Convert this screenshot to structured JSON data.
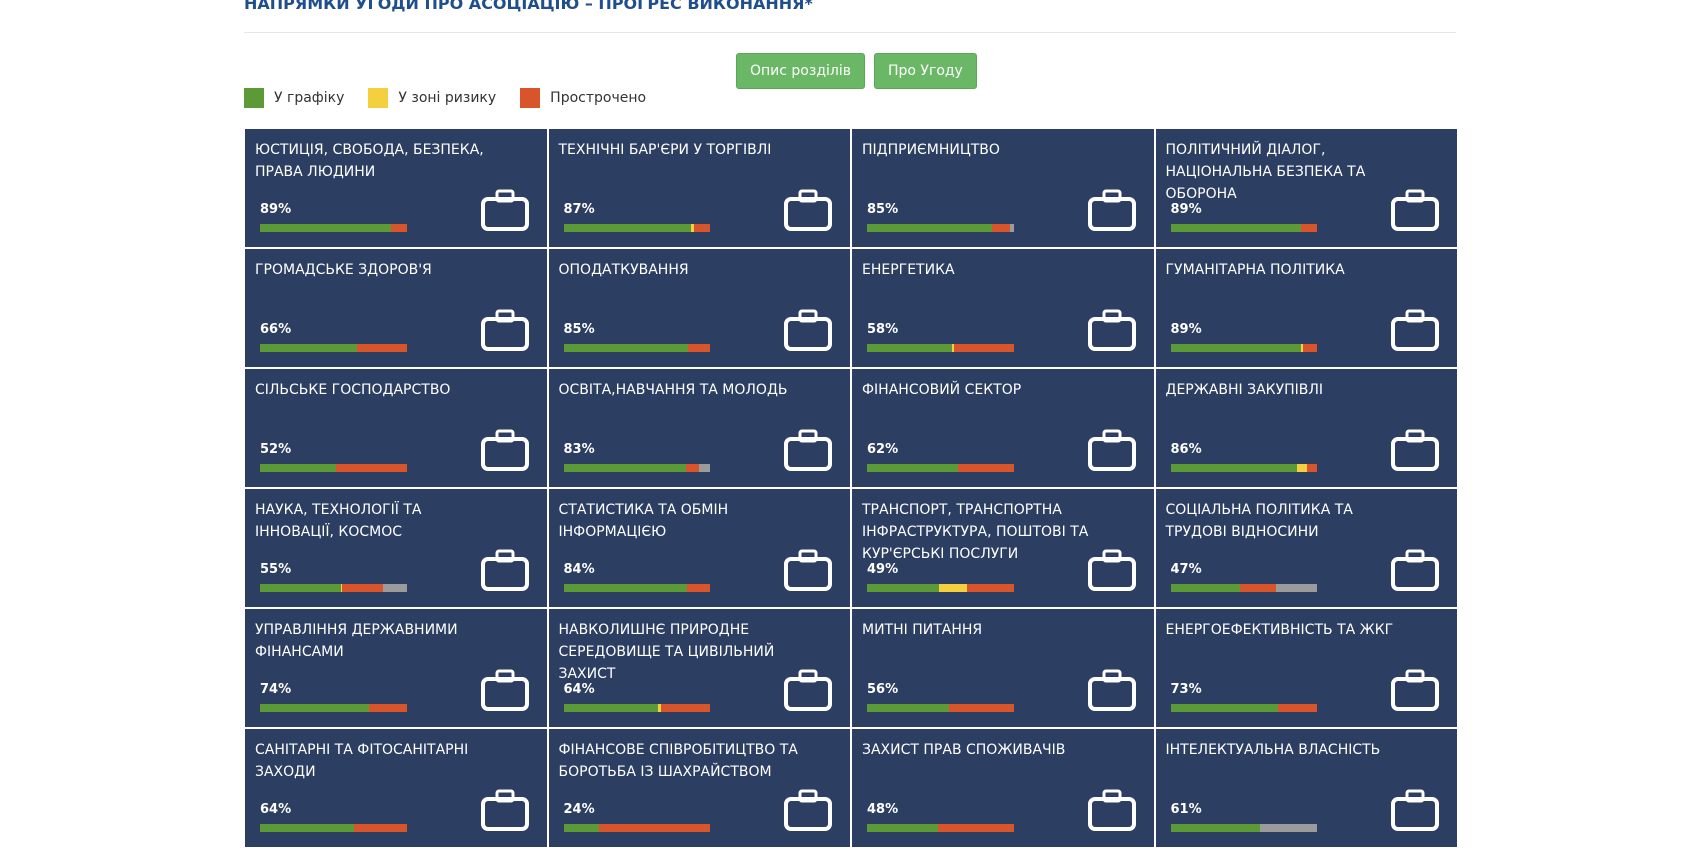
{
  "header": {
    "title": "НАПРЯМКИ УГОДИ ПРО АСОЦІАЦІЮ – ПРОГРЕС ВИКОНАННЯ*"
  },
  "buttons": [
    "Опис розділів",
    "Про Угоду"
  ],
  "legend": [
    {
      "label": "У графіку",
      "color": "#5b9a37"
    },
    {
      "label": "У зоні ризику",
      "color": "#f4d03f"
    },
    {
      "label": "Прострочено",
      "color": "#d8552b"
    }
  ],
  "other_color": "#9b9b9b",
  "tiles": [
    {
      "title": "ЮСТИЦІЯ, СВОБОДА, БЕЗПЕКА, ПРАВА ЛЮДИНИ",
      "label": "89%",
      "segments": [
        89,
        0,
        11,
        0
      ]
    },
    {
      "title": "ТЕХНІЧНІ БАР'ЄРИ У ТОРГІВЛІ",
      "label": "87%",
      "segments": [
        87,
        2,
        11,
        0
      ]
    },
    {
      "title": "ПІДПРИЄМНИЦТВО",
      "label": "85%",
      "segments": [
        85,
        0,
        12,
        3
      ]
    },
    {
      "title": "ПОЛІТИЧНИЙ ДІАЛОГ, НАЦІОНАЛЬНА БЕЗПЕКА ТА ОБОРОНА",
      "label": "89%",
      "segments": [
        89,
        0,
        11,
        0
      ]
    },
    {
      "title": "ГРОМАДСЬКЕ ЗДОРОВ'Я",
      "label": "66%",
      "segments": [
        66,
        0,
        34,
        0
      ]
    },
    {
      "title": "ОПОДАТКУВАННЯ",
      "label": "85%",
      "segments": [
        85,
        0,
        15,
        0
      ]
    },
    {
      "title": "ЕНЕРГЕТИКА",
      "label": "58%",
      "segments": [
        58,
        1,
        41,
        0
      ]
    },
    {
      "title": "ГУМАНІТАРНА ПОЛІТИКА",
      "label": "89%",
      "segments": [
        89,
        1,
        10,
        0
      ]
    },
    {
      "title": "СІЛЬСЬКЕ ГОСПОДАРСТВО",
      "label": "52%",
      "segments": [
        52,
        0,
        48,
        0
      ]
    },
    {
      "title": "ОСВІТА,НАВЧАННЯ ТА МОЛОДЬ",
      "label": "83%",
      "segments": [
        83,
        0,
        9,
        8
      ]
    },
    {
      "title": "ФІНАНСОВИЙ СЕКТОР",
      "label": "62%",
      "segments": [
        62,
        0,
        38,
        0
      ]
    },
    {
      "title": "ДЕРЖАВНІ ЗАКУПІВЛІ",
      "label": "86%",
      "segments": [
        86,
        7,
        7,
        0
      ]
    },
    {
      "title": "НАУКА, ТЕХНОЛОГІЇ ТА ІННОВАЦІЇ, КОСМОС",
      "label": "55%",
      "segments": [
        55,
        1,
        28,
        16
      ]
    },
    {
      "title": "СТАТИСТИКА ТА ОБМІН ІНФОРМАЦІЄЮ",
      "label": "84%",
      "segments": [
        84,
        0,
        16,
        0
      ]
    },
    {
      "title": "ТРАНСПОРТ, ТРАНСПОРТНА ІНФРАСТРУКТУРА, ПОШТОВІ ТА КУР'ЄРСЬКІ ПОСЛУГИ",
      "label": "49%",
      "segments": [
        49,
        19,
        32,
        0
      ]
    },
    {
      "title": "СОЦІАЛЬНА ПОЛІТИКА ТА ТРУДОВІ ВІДНОСИНИ",
      "label": "47%",
      "segments": [
        47,
        0,
        25,
        28
      ]
    },
    {
      "title": "УПРАВЛІННЯ ДЕРЖАВНИМИ ФІНАНСАМИ",
      "label": "74%",
      "segments": [
        74,
        0,
        26,
        0
      ]
    },
    {
      "title": "НАВКОЛИШНЄ ПРИРОДНЕ СЕРЕДОВИЩЕ ТА ЦИВІЛЬНИЙ ЗАХИСТ",
      "label": "64%",
      "segments": [
        64,
        2,
        34,
        0
      ]
    },
    {
      "title": "МИТНІ ПИТАННЯ",
      "label": "56%",
      "segments": [
        56,
        0,
        44,
        0
      ]
    },
    {
      "title": "ЕНЕРГОЕФЕКТИВНІСТЬ ТА ЖКГ",
      "label": "73%",
      "segments": [
        73,
        0,
        27,
        0
      ]
    },
    {
      "title": "САНІТАРНІ ТА ФІТОСАНІТАРНІ ЗАХОДИ",
      "label": "64%",
      "segments": [
        64,
        0,
        36,
        0
      ]
    },
    {
      "title": "ФІНАНСОВЕ СПІВРОБІТИЦТВО ТА БОРОТЬБА ІЗ ШАХРАЙСТВОМ",
      "label": "24%",
      "segments": [
        24,
        0,
        76,
        0
      ]
    },
    {
      "title": "ЗАХИСТ ПРАВ СПОЖИВАЧІВ",
      "label": "48%",
      "segments": [
        48,
        0,
        52,
        0
      ]
    },
    {
      "title": "ІНТЕЛЕКТУАЛЬНА ВЛАСНІСТЬ",
      "label": "61%",
      "segments": [
        61,
        0,
        0,
        39
      ]
    }
  ]
}
